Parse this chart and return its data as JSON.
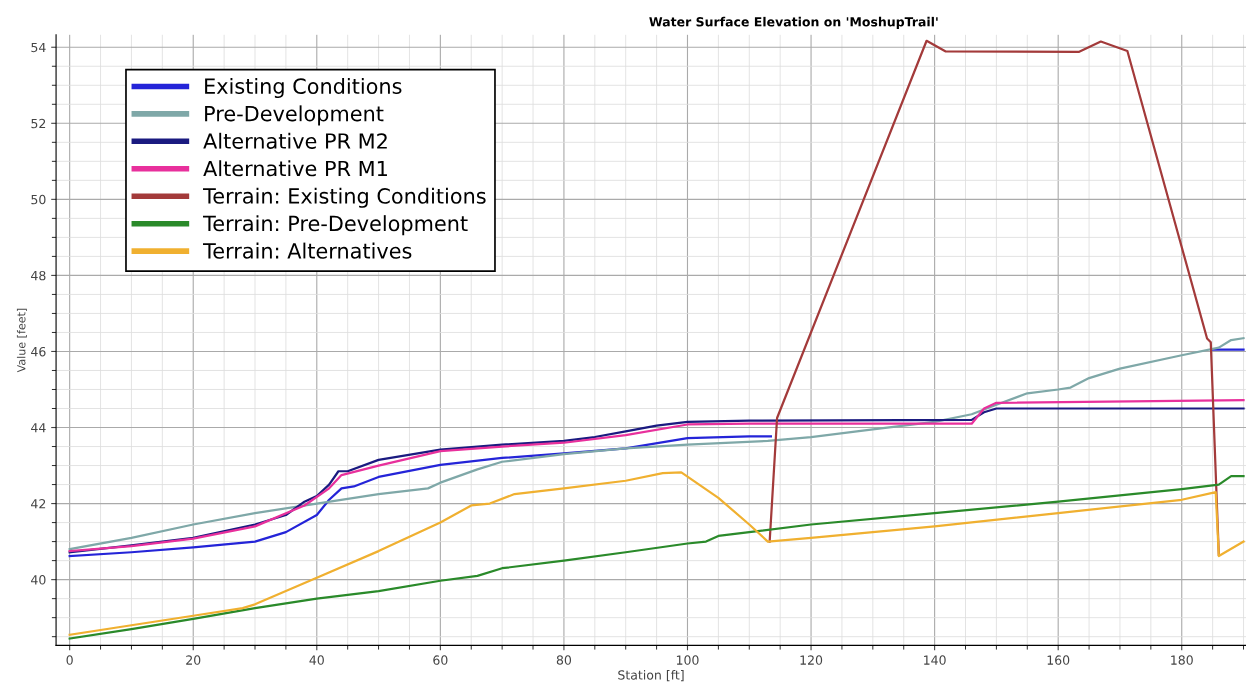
{
  "chart_data": {
    "type": "line",
    "title": "Water Surface Elevation on 'MoshupTrail'",
    "xlabel": "Station [ft]",
    "ylabel": "Value [feet]",
    "xlim": [
      -2.2,
      190.4
    ],
    "ylim": [
      38.27,
      54.33
    ],
    "xticks": [
      0,
      20,
      40,
      60,
      80,
      100,
      120,
      140,
      160,
      180
    ],
    "yticks": [
      40,
      42,
      44,
      46,
      48,
      50,
      52,
      54
    ],
    "grid": true,
    "legend": "top left",
    "marker": "none",
    "line_style": "solid",
    "series": [
      {
        "name": "Existing Conditions",
        "color": "#2424d8",
        "x": [
          0,
          10,
          20,
          30,
          35,
          40,
          42,
          44,
          46,
          50,
          60,
          70,
          80,
          90,
          100,
          110,
          113.5,
          150,
          185,
          190
        ],
        "values": [
          40.62,
          40.72,
          40.85,
          41.0,
          41.25,
          41.7,
          42.1,
          42.4,
          42.45,
          42.7,
          43.02,
          43.2,
          43.32,
          43.45,
          43.72,
          43.77,
          43.77,
          null,
          46.05,
          46.05
        ]
      },
      {
        "name": "Pre-Development",
        "color": "#7fa8a8",
        "x": [
          0,
          10,
          20,
          30,
          40,
          50,
          58,
          60,
          66,
          70,
          80,
          90,
          100,
          113,
          120,
          130,
          140,
          146,
          150,
          155,
          160,
          162,
          165,
          170,
          180,
          186,
          188,
          190
        ],
        "values": [
          40.8,
          41.1,
          41.45,
          41.75,
          42.0,
          42.25,
          42.4,
          42.55,
          42.9,
          43.1,
          43.3,
          43.45,
          43.55,
          43.65,
          43.75,
          43.95,
          44.15,
          44.35,
          44.6,
          44.9,
          45.0,
          45.05,
          45.3,
          45.55,
          45.9,
          46.1,
          46.3,
          46.35
        ]
      },
      {
        "name": "Alternative PR M2",
        "color": "#1a1a80",
        "x": [
          0,
          10,
          20,
          30,
          35,
          38,
          40,
          42,
          43.5,
          45,
          50,
          60,
          70,
          80,
          85,
          90,
          95,
          100,
          110,
          146,
          148,
          150,
          190
        ],
        "values": [
          40.72,
          40.9,
          41.1,
          41.45,
          41.7,
          42.05,
          42.2,
          42.5,
          42.85,
          42.85,
          43.15,
          43.42,
          43.55,
          43.65,
          43.75,
          43.9,
          44.05,
          44.15,
          44.18,
          44.2,
          44.4,
          44.5,
          44.5
        ]
      },
      {
        "name": "Alternative PR M1",
        "color": "#e8309c",
        "x": [
          0,
          10,
          20,
          30,
          38,
          42,
          44,
          50,
          60,
          70,
          80,
          90,
          100,
          110,
          146,
          148,
          150,
          190
        ],
        "values": [
          40.75,
          40.88,
          41.08,
          41.4,
          41.95,
          42.4,
          42.75,
          43.0,
          43.38,
          43.5,
          43.6,
          43.8,
          44.08,
          44.1,
          44.1,
          44.5,
          44.65,
          44.72
        ]
      },
      {
        "name": "Terrain: Existing Conditions",
        "color": "#a33a3a",
        "x": [
          113.3,
          114.5,
          138.7,
          141.8,
          163.4,
          166.9,
          171.2,
          184.1,
          184.7,
          186
        ],
        "values": [
          41.0,
          44.25,
          54.17,
          53.89,
          53.88,
          54.15,
          53.9,
          46.34,
          46.24,
          40.65
        ]
      },
      {
        "name": "Terrain: Pre-Development",
        "color": "#2a8a2a",
        "x": [
          0,
          10,
          20,
          30,
          40,
          50,
          60,
          66,
          70,
          80,
          90,
          100,
          103,
          105,
          110,
          120,
          140,
          160,
          180,
          186,
          188,
          190
        ],
        "values": [
          38.45,
          38.7,
          38.97,
          39.25,
          39.5,
          39.7,
          39.97,
          40.1,
          40.3,
          40.5,
          40.72,
          40.95,
          41.0,
          41.15,
          41.25,
          41.45,
          41.75,
          42.05,
          42.38,
          42.5,
          42.72,
          42.72
        ]
      },
      {
        "name": "Terrain: Alternatives",
        "color": "#f0b030",
        "x": [
          0,
          10,
          20,
          28,
          30,
          40,
          50,
          60,
          65,
          68,
          72,
          80,
          90,
          96,
          99,
          105,
          110,
          113,
          120,
          140,
          160,
          180,
          185.5,
          186,
          190
        ],
        "values": [
          38.55,
          38.8,
          39.05,
          39.25,
          39.35,
          40.05,
          40.75,
          41.5,
          41.95,
          42.0,
          42.25,
          42.4,
          42.6,
          42.8,
          42.82,
          42.15,
          41.45,
          41.0,
          41.1,
          41.4,
          41.75,
          42.1,
          42.3,
          40.62,
          41.0
        ]
      }
    ]
  }
}
